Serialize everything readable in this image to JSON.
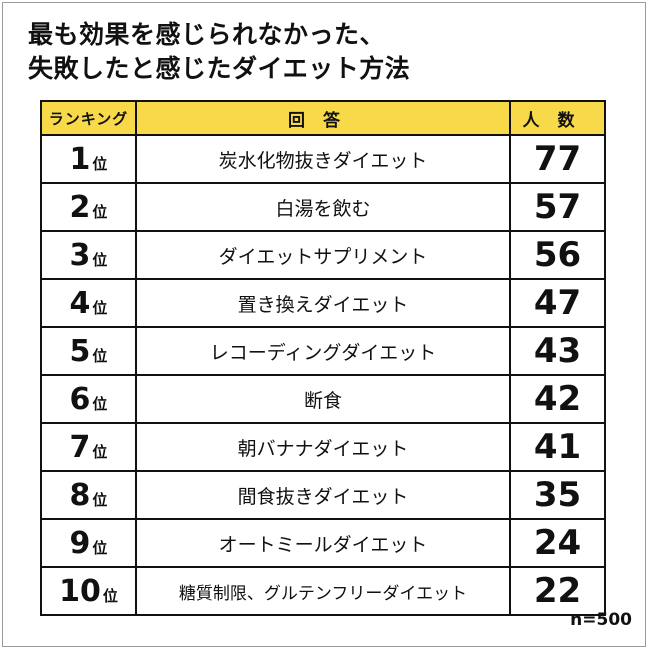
{
  "title": {
    "line1": "最も効果を感じられなかった、",
    "line2": "失敗したと感じたダイエット方法"
  },
  "table": {
    "headers": {
      "rank": "ランキング",
      "answer": "回答",
      "count": "人数"
    },
    "rank_suffix": "位",
    "rows": [
      {
        "rank": "1",
        "answer": "炭水化物抜きダイエット",
        "count": "77"
      },
      {
        "rank": "2",
        "answer": "白湯を飲む",
        "count": "57"
      },
      {
        "rank": "3",
        "answer": "ダイエットサプリメント",
        "count": "56"
      },
      {
        "rank": "4",
        "answer": "置き換えダイエット",
        "count": "47"
      },
      {
        "rank": "5",
        "answer": "レコーディングダイエット",
        "count": "43"
      },
      {
        "rank": "6",
        "answer": "断食",
        "count": "42"
      },
      {
        "rank": "7",
        "answer": "朝バナナダイエット",
        "count": "41"
      },
      {
        "rank": "8",
        "answer": "間食抜きダイエット",
        "count": "35"
      },
      {
        "rank": "9",
        "answer": "オートミールダイエット",
        "count": "24"
      },
      {
        "rank": "10",
        "answer": "糖質制限、グルテンフリーダイエット",
        "count": "22"
      }
    ]
  },
  "sample_size": "n=500",
  "colors": {
    "header_bg": "#f7d94a",
    "border": "#111111"
  }
}
